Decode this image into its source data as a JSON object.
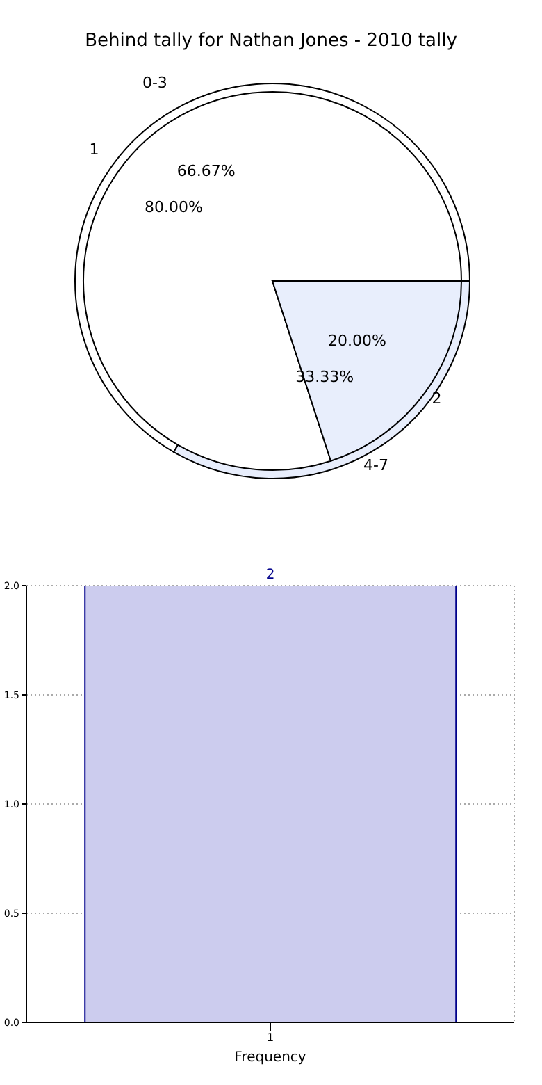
{
  "chart_data": [
    {
      "type": "pie",
      "title": "Behind tally for Nathan Jones - 2010 tally",
      "categories": [
        "0-3",
        "4-7"
      ],
      "values": [
        66.67,
        33.33
      ],
      "colors": [
        "#ffffff",
        "#e8eefc"
      ],
      "value_labels": [
        "66.67%",
        "33.33%"
      ]
    },
    {
      "type": "pie",
      "categories": [
        "1",
        "2"
      ],
      "values": [
        80.0,
        20.0
      ],
      "colors": [
        "#ffffff",
        "#e8eefc"
      ],
      "value_labels": [
        "80.00%",
        "20.00%"
      ]
    },
    {
      "type": "bar",
      "xlabel": "Frequency",
      "categories": [
        "1"
      ],
      "values": [
        2
      ],
      "color": "#ccccee",
      "ylim": [
        0,
        2
      ],
      "yticks": [
        {
          "value": 0,
          "label": "0.0"
        },
        {
          "value": 0.5,
          "label": "0.5"
        },
        {
          "value": 1,
          "label": "1.0"
        },
        {
          "value": 1.5,
          "label": "1.5"
        },
        {
          "value": 2,
          "label": "2.0"
        }
      ],
      "grid": true,
      "data_labels": true
    }
  ]
}
